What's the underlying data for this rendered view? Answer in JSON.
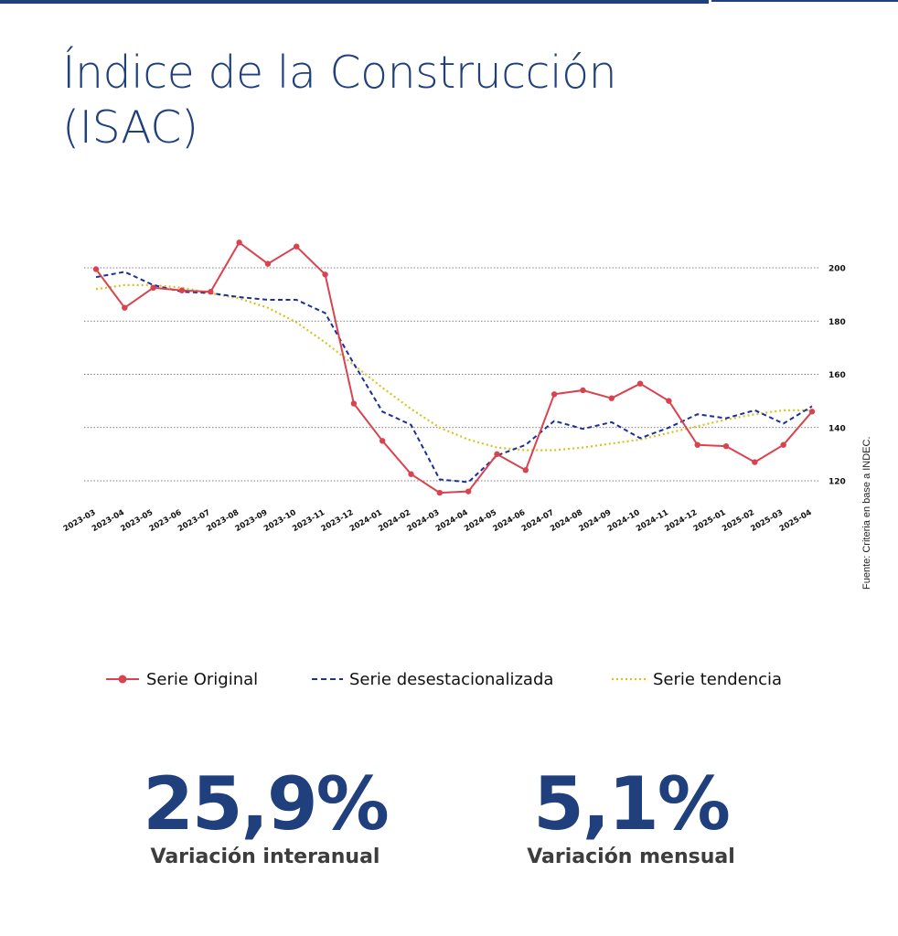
{
  "title_line1": "Índice de la Construcción",
  "title_line2": "(ISAC)",
  "source": "Fuente: Criteria en base a INDEC.",
  "colors": {
    "original": "#d9434f",
    "desest": "#1b2f9a",
    "tendencia": "#d9c21c",
    "title": "#1f3f7d",
    "grid": "#555555"
  },
  "chart_data": {
    "type": "line",
    "x": [
      "2023-03",
      "2023-04",
      "2023-05",
      "2023-06",
      "2023-07",
      "2023-08",
      "2023-09",
      "2023-10",
      "2023-11",
      "2023-12",
      "2024-01",
      "2024-02",
      "2024-03",
      "2024-04",
      "2024-05",
      "2024-06",
      "2024-07",
      "2024-08",
      "2024-09",
      "2024-10",
      "2024-11",
      "2024-12",
      "2025-01",
      "2025-02",
      "2025-03",
      "2025-04"
    ],
    "yticks": [
      120,
      140,
      160,
      180,
      200
    ],
    "ylim": [
      113,
      212
    ],
    "grid": true,
    "legend_position": "bottom",
    "series": [
      {
        "key": "original",
        "name": "Serie Original",
        "style": "solid-markers",
        "values": [
          199.5,
          185,
          192.5,
          191.5,
          191,
          209.5,
          201.5,
          208,
          197.5,
          149,
          135,
          122.5,
          115.5,
          116,
          130,
          124,
          152.5,
          154,
          151,
          156.5,
          150,
          133.5,
          133,
          127,
          133.5,
          146
        ]
      },
      {
        "key": "desest",
        "name": "Serie desestacionalizada",
        "style": "dashed",
        "values": [
          196.5,
          198.5,
          193.5,
          191,
          190.5,
          189,
          188,
          188,
          183,
          164,
          146,
          141,
          120.5,
          119.5,
          129.5,
          133.5,
          142.5,
          139.5,
          142,
          136,
          140,
          145,
          143.5,
          146.5,
          141.5,
          148
        ]
      },
      {
        "key": "tendencia",
        "name": "Serie tendencia",
        "style": "dotted",
        "values": [
          192,
          193.5,
          193.5,
          192.5,
          190.5,
          188.5,
          185,
          179.5,
          172,
          163.5,
          155,
          147,
          140,
          135.5,
          132.5,
          131.5,
          131.5,
          132.5,
          134,
          135.5,
          138,
          140.5,
          143,
          145,
          146.5,
          146.5
        ]
      }
    ]
  },
  "kpis": [
    {
      "value": "25,9%",
      "label": "Variación interanual"
    },
    {
      "value": "5,1%",
      "label": "Variación mensual"
    }
  ]
}
